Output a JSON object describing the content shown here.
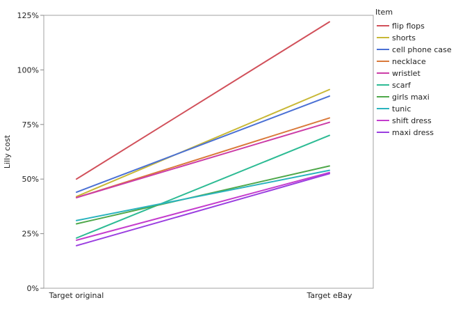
{
  "chart_data": {
    "type": "line",
    "ylabel": "Lilly cost",
    "xlabel": "",
    "categories": [
      "Target original",
      "Target eBay"
    ],
    "ylim": [
      0,
      125
    ],
    "yticks": [
      "0%",
      "25%",
      "50%",
      "75%",
      "100%",
      "125%"
    ],
    "y_unit": "%",
    "grid": false,
    "legend": {
      "title": "Item",
      "placement": "right"
    },
    "series": [
      {
        "name": "flip flops",
        "color": "#d1505a",
        "values": [
          50,
          122
        ]
      },
      {
        "name": "shorts",
        "color": "#c8b836",
        "values": [
          42,
          91
        ]
      },
      {
        "name": "cell phone case",
        "color": "#4a70d4",
        "values": [
          44,
          88
        ]
      },
      {
        "name": "necklace",
        "color": "#d9793a",
        "values": [
          41.5,
          78
        ]
      },
      {
        "name": "wristlet",
        "color": "#cc3da7",
        "values": [
          41.5,
          76
        ]
      },
      {
        "name": "scarf",
        "color": "#2dbb94",
        "values": [
          23,
          70
        ]
      },
      {
        "name": "girls maxi",
        "color": "#4fa84a",
        "values": [
          29.5,
          56
        ]
      },
      {
        "name": "tunic",
        "color": "#2ab3be",
        "values": [
          31,
          54
        ]
      },
      {
        "name": "shift dress",
        "color": "#c43ccd",
        "values": [
          22,
          53
        ]
      },
      {
        "name": "maxi dress",
        "color": "#9a3ee0",
        "values": [
          19.5,
          52.5
        ]
      }
    ]
  }
}
